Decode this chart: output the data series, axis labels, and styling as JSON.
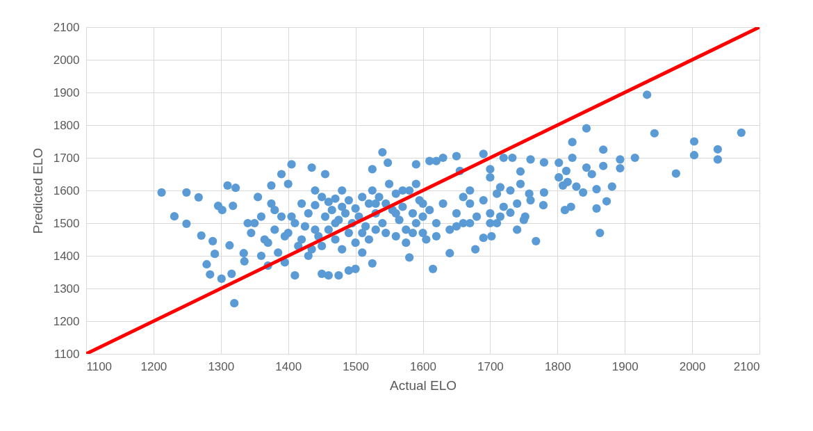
{
  "chart_data": {
    "type": "scatter",
    "xlabel": "Actual ELO",
    "ylabel": "Predicted ELO",
    "xlim": [
      1100,
      2100
    ],
    "xticks": [
      1100,
      1200,
      1300,
      1400,
      1500,
      1600,
      1700,
      1800,
      1900,
      2000,
      2100
    ],
    "ylim": [
      1100,
      2100
    ],
    "yticks": [
      1100,
      1200,
      1300,
      1400,
      1500,
      1600,
      1700,
      1800,
      1900,
      2000,
      2100
    ],
    "grid": true,
    "series": [
      {
        "color": "#5b9bd5",
        "marker": "circle",
        "x": [
          1212,
          1231,
          1249,
          1249,
          1267,
          1271,
          1279,
          1284,
          1288,
          1291,
          1296,
          1301,
          1302,
          1310,
          1313,
          1316,
          1318,
          1322,
          1334,
          1335,
          1320,
          1933,
          1944,
          1976,
          2003,
          2003,
          2038,
          2038,
          2073,
          1915,
          1893,
          1893,
          1881,
          1873,
          1868,
          1868,
          1863,
          1858,
          1858,
          1851,
          1843,
          1843,
          1838,
          1828,
          1822,
          1822,
          1820,
          1815,
          1813,
          1811,
          1808,
          1802,
          1802,
          1780,
          1780,
          1779,
          1768,
          1760,
          1758,
          1752,
          1745,
          1745,
          1740,
          1733,
          1730,
          1720,
          1715,
          1710,
          1702,
          1700,
          1700,
          1690,
          1690,
          1678,
          1670,
          1660,
          1655,
          1650,
          1640,
          1630,
          1620,
          1615,
          1610,
          1605,
          1600,
          1590,
          1590,
          1580,
          1570,
          1560,
          1548,
          1540,
          1530,
          1525,
          1525,
          1510,
          1500,
          1490,
          1480,
          1475,
          1470,
          1460,
          1455,
          1450,
          1440,
          1440,
          1435,
          1430,
          1420,
          1410,
          1405,
          1405,
          1400,
          1395,
          1390,
          1380,
          1375,
          1370,
          1365,
          1360,
          1355,
          1350,
          1345,
          1340,
          1420,
          1430,
          1440,
          1450,
          1455,
          1460,
          1465,
          1470,
          1475,
          1480,
          1485,
          1490,
          1495,
          1500,
          1505,
          1510,
          1515,
          1520,
          1525,
          1530,
          1535,
          1540,
          1545,
          1550,
          1555,
          1560,
          1565,
          1570,
          1575,
          1580,
          1585,
          1590,
          1595,
          1600,
          1610,
          1620,
          1630,
          1640,
          1650,
          1660,
          1670,
          1680,
          1690,
          1700,
          1710,
          1720,
          1730,
          1740,
          1750,
          1760,
          1380,
          1390,
          1400,
          1410,
          1370,
          1385,
          1395,
          1360,
          1375,
          1415,
          1425,
          1435,
          1445,
          1450,
          1460,
          1470,
          1480,
          1490,
          1500,
          1510,
          1520,
          1530,
          1545,
          1560,
          1575,
          1585,
          1600,
          1620,
          1650,
          1670,
          1700,
          1715
        ],
        "values": [
          1594,
          1521,
          1594,
          1498,
          1579,
          1462,
          1374,
          1343,
          1445,
          1406,
          1553,
          1330,
          1540,
          1615,
          1432,
          1345,
          1553,
          1608,
          1408,
          1383,
          1255,
          1893,
          1775,
          1652,
          1750,
          1708,
          1726,
          1695,
          1777,
          1700,
          1695,
          1668,
          1612,
          1567,
          1725,
          1675,
          1470,
          1545,
          1604,
          1650,
          1790,
          1670,
          1594,
          1612,
          1700,
          1748,
          1550,
          1626,
          1660,
          1540,
          1615,
          1685,
          1640,
          1686,
          1594,
          1555,
          1445,
          1695,
          1590,
          1520,
          1658,
          1620,
          1480,
          1700,
          1532,
          1700,
          1610,
          1500,
          1460,
          1640,
          1665,
          1455,
          1712,
          1420,
          1600,
          1580,
          1660,
          1705,
          1408,
          1700,
          1690,
          1360,
          1690,
          1450,
          1560,
          1680,
          1620,
          1395,
          1600,
          1530,
          1685,
          1717,
          1560,
          1665,
          1377,
          1410,
          1360,
          1355,
          1600,
          1340,
          1500,
          1340,
          1650,
          1345,
          1480,
          1600,
          1670,
          1400,
          1450,
          1340,
          1680,
          1520,
          1620,
          1380,
          1650,
          1540,
          1615,
          1370,
          1450,
          1400,
          1580,
          1500,
          1470,
          1500,
          1560,
          1530,
          1555,
          1580,
          1520,
          1565,
          1540,
          1575,
          1510,
          1550,
          1530,
          1570,
          1500,
          1545,
          1520,
          1580,
          1490,
          1560,
          1600,
          1530,
          1580,
          1500,
          1560,
          1620,
          1540,
          1590,
          1510,
          1550,
          1480,
          1600,
          1530,
          1500,
          1570,
          1520,
          1540,
          1500,
          1560,
          1480,
          1530,
          1500,
          1560,
          1520,
          1570,
          1530,
          1590,
          1550,
          1600,
          1560,
          1510,
          1570,
          1480,
          1520,
          1470,
          1500,
          1440,
          1410,
          1460,
          1520,
          1560,
          1430,
          1490,
          1420,
          1460,
          1430,
          1480,
          1450,
          1420,
          1470,
          1440,
          1470,
          1450,
          1480,
          1470,
          1460,
          1440,
          1470,
          1470,
          1460,
          1490,
          1500,
          1500,
          1520
        ]
      },
      {
        "type": "line",
        "color": "#ff0000",
        "x": [
          1100,
          2100
        ],
        "values": [
          1100,
          2100
        ]
      }
    ]
  }
}
